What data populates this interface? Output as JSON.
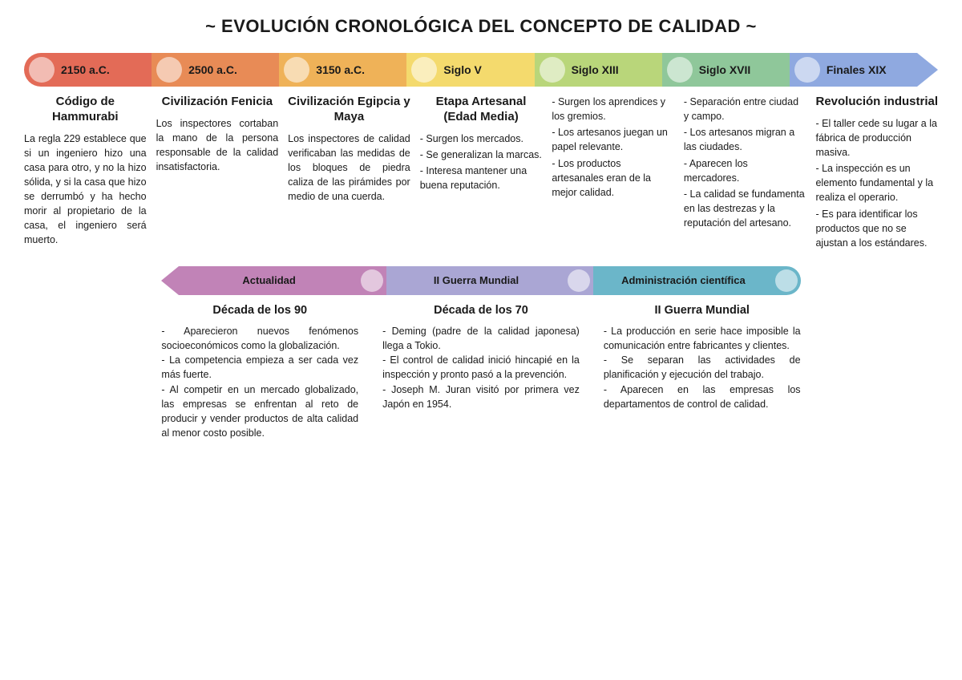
{
  "title": "~  EVOLUCIÓN CRONOLÓGICA DEL CONCEPTO DE CALIDAD  ~",
  "topTimeline": {
    "arrowheadColor": "#8fa9e0",
    "segments": [
      {
        "label": "2150 a.C.",
        "bg": "#e36b57"
      },
      {
        "label": "2500 a.C.",
        "bg": "#e88b56"
      },
      {
        "label": "3150 a.C.",
        "bg": "#efb258"
      },
      {
        "label": "Siglo V",
        "bg": "#f4da6d"
      },
      {
        "label": "Siglo XIII",
        "bg": "#b9d67a"
      },
      {
        "label": "Siglo XVII",
        "bg": "#8fc79a"
      },
      {
        "label": "Finales XIX",
        "bg": "#8fa9e0"
      }
    ]
  },
  "topColumns": [
    {
      "title": "Código de Hammurabi",
      "justify": true,
      "body": "La regla 229 establece que si un ingeniero hizo una casa para otro, y no la hizo sólida, y si la casa que hizo se derrumbó y ha hecho morir al propietario de la casa, el ingeniero será muerto."
    },
    {
      "title": "Civilización Fenicia",
      "justify": true,
      "body": "Los inspectores cortaban la mano de la persona responsable de la calidad insatisfactoria."
    },
    {
      "title": "Civilización Egipcia y Maya",
      "justify": true,
      "body": "Los inspectores de calidad verificaban las medidas de los bloques de piedra caliza de las pirámides por medio de una cuerda."
    },
    {
      "title": "Etapa Artesanal (Edad Media)",
      "justify": false,
      "body": "- Surgen los mercados.\n- Se generalizan la marcas.\n- Interesa mantener una buena reputación."
    },
    {
      "title": "",
      "justify": false,
      "body": "- Surgen los aprendices y los gremios.\n- Los artesanos juegan un papel relevante.\n- Los productos artesanales eran de la mejor calidad."
    },
    {
      "title": "",
      "justify": false,
      "body": "- Separación entre ciudad y campo.\n- Los artesanos migran a las ciudades.\n- Aparecen los mercadores.\n- La calidad se fundamenta en las destrezas y la reputación del artesano."
    },
    {
      "title": "Revolución industrial",
      "justify": false,
      "body": "- El taller cede su lugar a la fábrica de producción masiva.\n- La inspección es un elemento fundamental y la realiza el operario.\n- Es para identificar los productos que no se ajustan a los estándares."
    }
  ],
  "midTimeline": {
    "arrowheadColor": "#c183b7",
    "segments": [
      {
        "label": "Administración científica",
        "bg": "#6bb6c9"
      },
      {
        "label": "II Guerra Mundial",
        "bg": "#aaa6d4"
      },
      {
        "label": "Actualidad",
        "bg": "#c183b7"
      }
    ]
  },
  "midColumns": [
    {
      "title": "II Guerra Mundial",
      "body": "- La producción en serie hace imposible la comunicación entre fabricantes y clientes.\n- Se separan las actividades de planificación y ejecución del trabajo.\n- Aparecen en las empresas los departamentos de control de calidad."
    },
    {
      "title": "Década de los 70",
      "body": "- Deming (padre de la calidad japonesa) llega a Tokio.\n- El control de calidad inició hincapié en la inspección y pronto pasó a la prevención.\n- Joseph M. Juran visitó por primera vez Japón en 1954."
    },
    {
      "title": "Década de los 90",
      "body": "- Aparecieron nuevos fenómenos socioeconómicos como la globalización.\n- La competencia empieza a ser cada vez más fuerte.\n- Al competir en un mercado globalizado, las empresas se enfrentan al reto de producir y vender productos de alta calidad al menor costo posible."
    }
  ]
}
